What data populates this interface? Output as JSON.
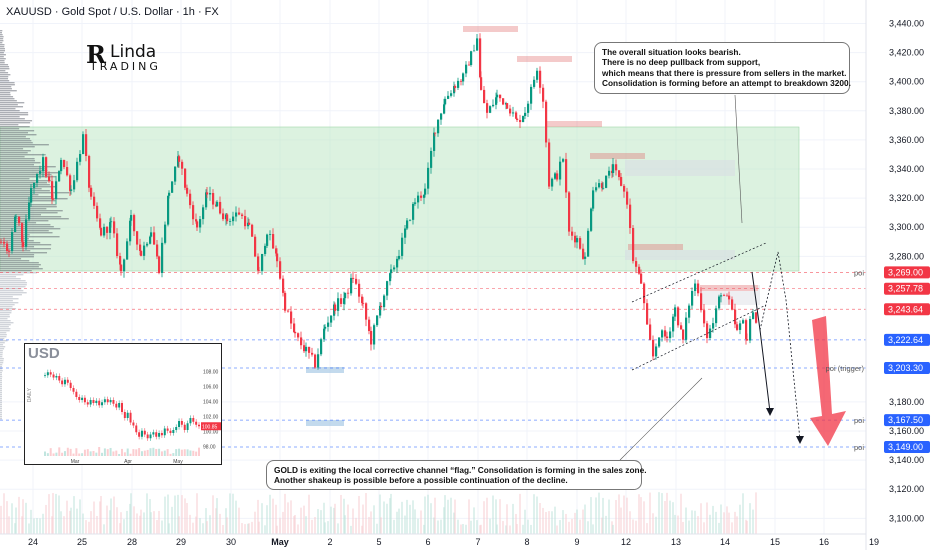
{
  "header": {
    "symbol": "XAUUSD · Gold Spot / U.S. Dollar · 1h · FX"
  },
  "logo": {
    "initial": "R",
    "name": "Linda",
    "sub": "TRADING"
  },
  "notes": {
    "top": [
      "The overall situation looks bearish.",
      "There is no deep pullback from support,",
      "which means that there is pressure from sellers in the market.",
      "Consolidation is forming before an attempt to breakdown 3200."
    ],
    "bottom": [
      "GOLD is exiting the local corrective channel “flag.” Consolidation is forming in the sales zone.",
      "Another shakeup is possible before a possible continuation of the decline."
    ]
  },
  "colors": {
    "up": "#089981",
    "down": "#f23645",
    "zone": "#bfe8c6",
    "price_label_red": "#f23645",
    "price_label_blue": "#2962ff"
  },
  "chart_data": {
    "type": "candlestick",
    "symbol": "XAUUSD",
    "timeframe": "1h",
    "x_tick_labels": [
      "24",
      "25",
      "28",
      "29",
      "30",
      "May",
      "2",
      "5",
      "6",
      "7",
      "8",
      "9",
      "12",
      "13",
      "14",
      "15",
      "16",
      "19"
    ],
    "y_tick_labels": [
      "3,440.00",
      "3,420.00",
      "3,400.00",
      "3,380.00",
      "3,360.00",
      "3,340.00",
      "3,320.00",
      "3,300.00",
      "3,280.00",
      "3,180.00",
      "3,160.00",
      "3,140.00",
      "3,120.00",
      "3,100.00"
    ],
    "ylim": [
      3092,
      3452
    ],
    "level_labels": [
      {
        "text": "3,269.00",
        "price": 3269.0,
        "color": "#f23645",
        "tag": "poi"
      },
      {
        "text": "3,257.78",
        "price": 3257.78,
        "color": "#f23645",
        "tag": ""
      },
      {
        "text": "3,243.64",
        "price": 3243.64,
        "color": "#f23645",
        "tag": ""
      },
      {
        "text": "3,222.64",
        "price": 3222.64,
        "color": "#2962ff",
        "tag": ""
      },
      {
        "text": "3,203.30",
        "price": 3203.3,
        "color": "#2962ff",
        "tag": "poi (trigger)"
      },
      {
        "text": "3,167.50",
        "price": 3167.5,
        "color": "#2962ff",
        "tag": "poi"
      },
      {
        "text": "3,149.00",
        "price": 3149.0,
        "color": "#2962ff",
        "tag": "poi"
      }
    ],
    "price_path": [
      [
        0,
        3290
      ],
      [
        8,
        3283
      ],
      [
        15,
        3308
      ],
      [
        22,
        3288
      ],
      [
        30,
        3325
      ],
      [
        42,
        3345
      ],
      [
        52,
        3318
      ],
      [
        60,
        3348
      ],
      [
        70,
        3326
      ],
      [
        82,
        3362
      ],
      [
        90,
        3318
      ],
      [
        100,
        3296
      ],
      [
        110,
        3302
      ],
      [
        120,
        3270
      ],
      [
        130,
        3305
      ],
      [
        140,
        3282
      ],
      [
        150,
        3298
      ],
      [
        158,
        3272
      ],
      [
        168,
        3325
      ],
      [
        178,
        3348
      ],
      [
        186,
        3322
      ],
      [
        196,
        3300
      ],
      [
        206,
        3323
      ],
      [
        216,
        3315
      ],
      [
        226,
        3305
      ],
      [
        238,
        3310
      ],
      [
        248,
        3300
      ],
      [
        258,
        3268
      ],
      [
        266,
        3298
      ],
      [
        276,
        3278
      ],
      [
        284,
        3246
      ],
      [
        294,
        3225
      ],
      [
        305,
        3215
      ],
      [
        314,
        3206
      ],
      [
        324,
        3232
      ],
      [
        334,
        3246
      ],
      [
        344,
        3252
      ],
      [
        352,
        3266
      ],
      [
        362,
        3245
      ],
      [
        370,
        3222
      ],
      [
        380,
        3248
      ],
      [
        390,
        3268
      ],
      [
        398,
        3283
      ],
      [
        406,
        3302
      ],
      [
        414,
        3318
      ],
      [
        424,
        3325
      ],
      [
        434,
        3368
      ],
      [
        444,
        3388
      ],
      [
        454,
        3398
      ],
      [
        462,
        3403
      ],
      [
        470,
        3418
      ],
      [
        476,
        3431
      ],
      [
        480,
        3393
      ],
      [
        486,
        3378
      ],
      [
        496,
        3390
      ],
      [
        506,
        3385
      ],
      [
        516,
        3372
      ],
      [
        524,
        3380
      ],
      [
        530,
        3394
      ],
      [
        536,
        3410
      ],
      [
        542,
        3388
      ],
      [
        548,
        3330
      ],
      [
        556,
        3336
      ],
      [
        562,
        3348
      ],
      [
        568,
        3296
      ],
      [
        576,
        3292
      ],
      [
        584,
        3278
      ],
      [
        592,
        3328
      ],
      [
        602,
        3330
      ],
      [
        612,
        3340
      ],
      [
        620,
        3330
      ],
      [
        626,
        3318
      ],
      [
        632,
        3278
      ],
      [
        640,
        3262
      ],
      [
        646,
        3230
      ],
      [
        652,
        3211
      ],
      [
        658,
        3227
      ],
      [
        666,
        3224
      ],
      [
        674,
        3244
      ],
      [
        682,
        3222
      ],
      [
        688,
        3248
      ],
      [
        694,
        3262
      ],
      [
        700,
        3246
      ],
      [
        706,
        3226
      ],
      [
        712,
        3234
      ],
      [
        720,
        3256
      ],
      [
        728,
        3248
      ],
      [
        736,
        3228
      ],
      [
        742,
        3235
      ],
      [
        746,
        3223
      ],
      [
        752,
        3245
      ],
      [
        756,
        3232
      ]
    ],
    "volume_profile_levels": true,
    "inset": {
      "title": "USD",
      "label": "DAILY",
      "x_labels": [
        "Mar",
        "Apr",
        "May"
      ],
      "y_labels": [
        "108.00",
        "106.00",
        "104.00",
        "102.00",
        "100.00",
        "98.00"
      ],
      "ylim": [
        97,
        109
      ],
      "values": [
        107.5,
        107.9,
        107.6,
        107.2,
        107.4,
        106.8,
        106.3,
        106.9,
        106.5,
        105.8,
        105.3,
        104.6,
        104.2,
        104.5,
        103.9,
        103.6,
        104.2,
        103.8,
        104.1,
        103.5,
        103.9,
        104.3,
        103.9,
        104.2,
        103.7,
        103.2,
        103.8,
        102.6,
        101.8,
        102.5,
        101.2,
        100.8,
        99.9,
        99.3,
        100.1,
        99.6,
        99.1,
        99.6,
        99.9,
        99.3,
        99.8,
        99.5,
        100.4,
        100.1,
        99.8,
        100.2,
        100.6,
        101.4,
        100.9,
        100.2,
        101.1,
        101.8,
        101.3,
        100.9,
        100.7
      ],
      "last_price_label": "100.85"
    }
  }
}
